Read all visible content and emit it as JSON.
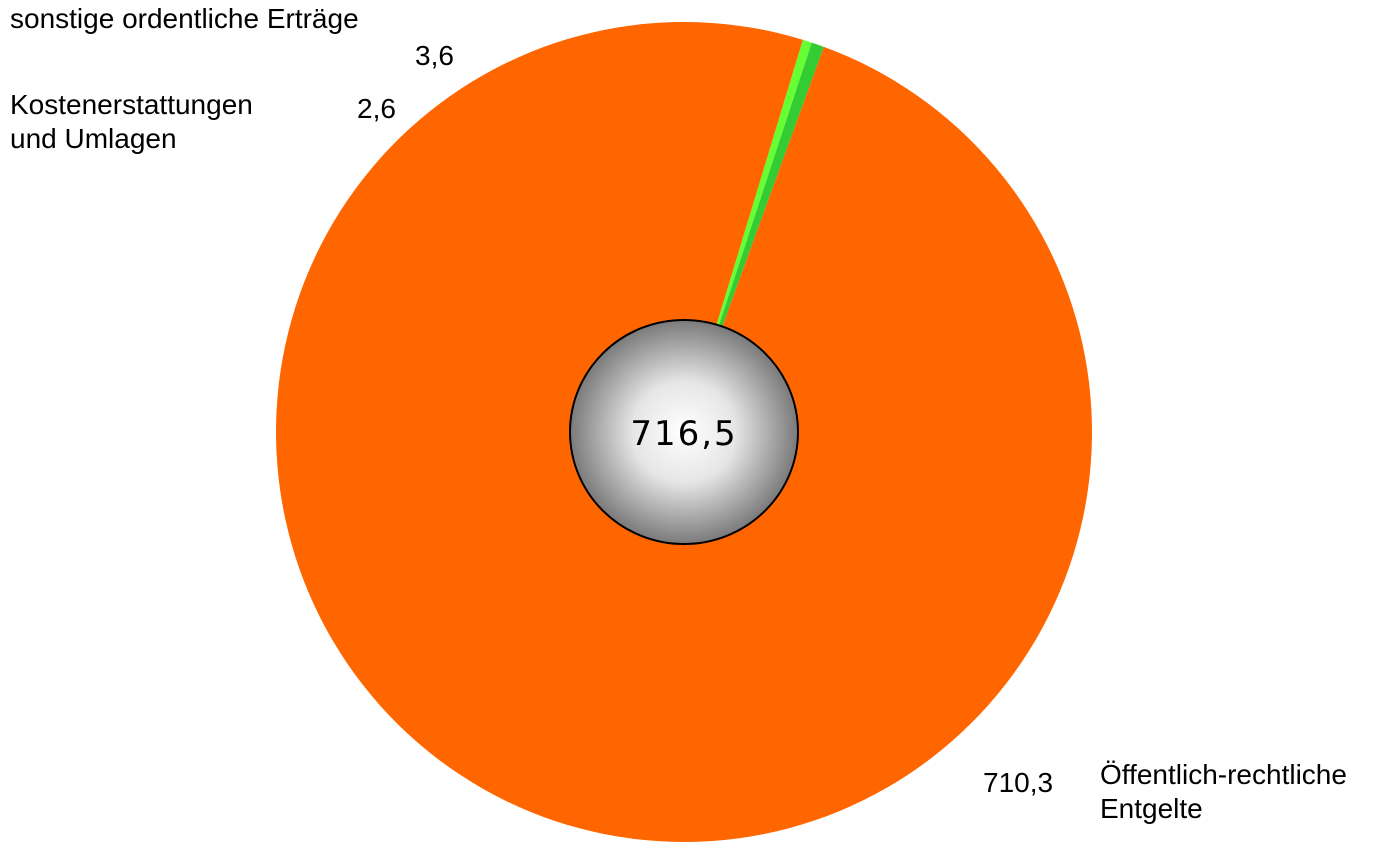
{
  "chart_data": {
    "type": "pie",
    "categories": [
      "Öffentlich-rechtliche Entgelte",
      "Kostenerstattungen und Umlagen",
      "sonstige ordentliche Erträge"
    ],
    "values": [
      710.3,
      2.6,
      3.6
    ],
    "value_labels": [
      "710,3",
      "2,6",
      "3,6"
    ],
    "label_lines": [
      [
        "Öffentlich-rechtliche",
        "Entgelte"
      ],
      [
        "Kostenerstattungen",
        "und Umlagen"
      ],
      [
        "sonstige ordentliche Erträge"
      ]
    ],
    "colors": [
      "#FF6600",
      "#66FF33",
      "#33CC33"
    ],
    "total_label": "716,5",
    "title": "",
    "legend": "none"
  }
}
